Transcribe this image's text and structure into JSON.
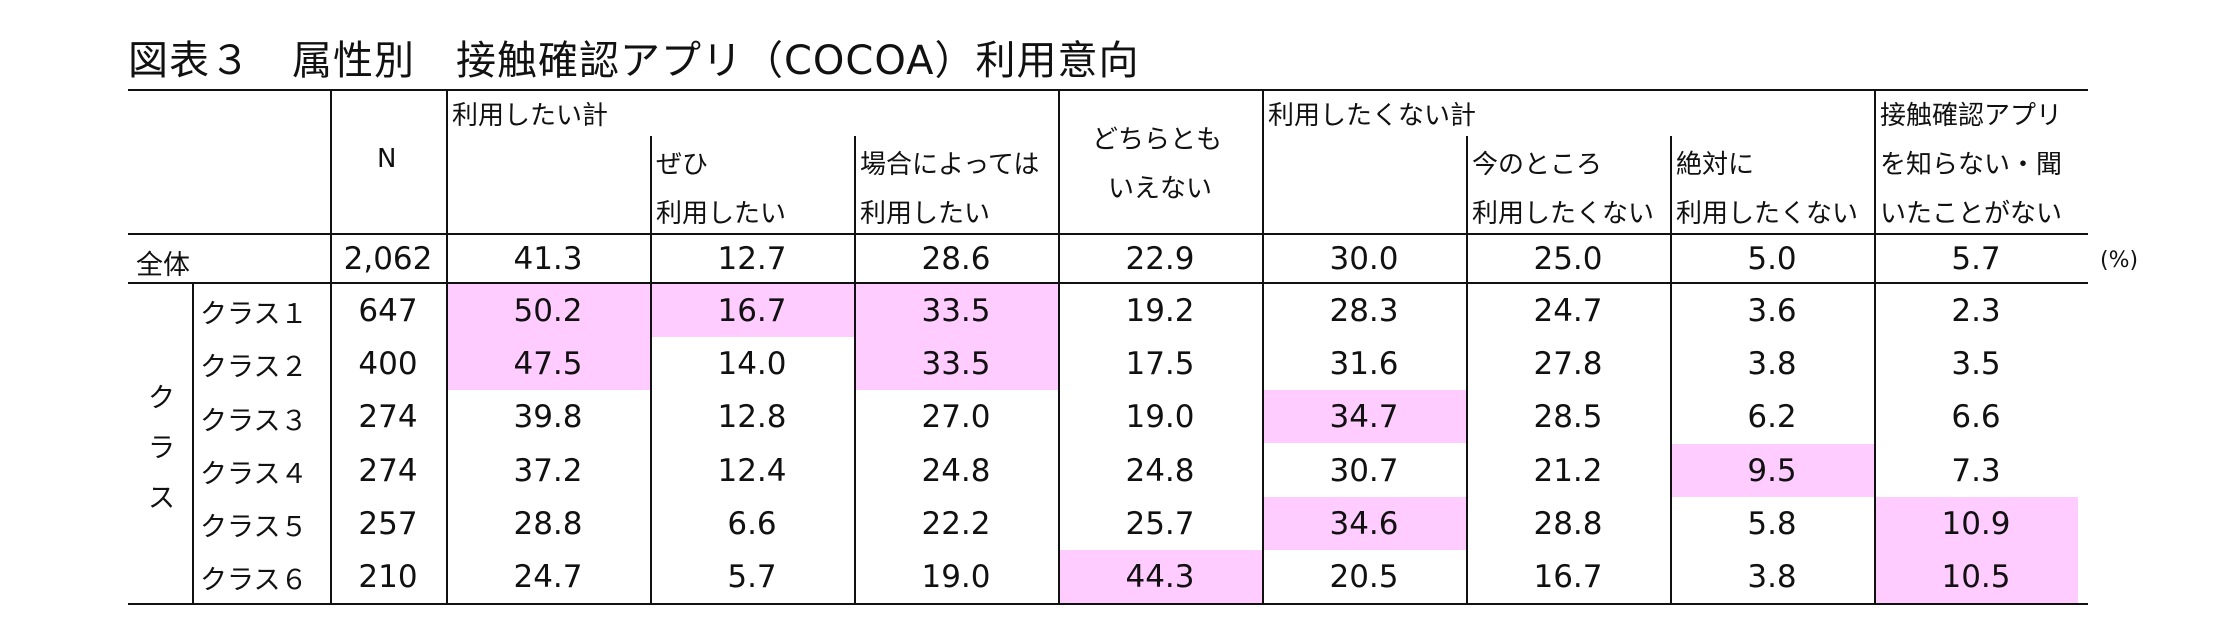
{
  "title": "図表３　属性別　接触確認アプリ（COCOA）利用意向",
  "unit": "(%)",
  "highlight_color": "#ffccff",
  "headers": {
    "n": "N",
    "use_total": "利用したい計",
    "definitely_1": "ぜひ",
    "definitely_2": "利用したい",
    "depends_1": "場合によっては",
    "depends_2": "利用したい",
    "neither_1": "どちらとも",
    "neither_2": "いえない",
    "not_use_total": "利用したくない計",
    "for_now_1": "今のところ",
    "for_now_2": "利用したくない",
    "absolutely_1": "絶対に",
    "absolutely_2": "利用したくない",
    "unknown_1": "接触確認アプリ",
    "unknown_2": "を知らない・聞",
    "unknown_3": "いたことがない"
  },
  "group_label_chars": [
    "ク",
    "ラ",
    "ス"
  ],
  "total_row": {
    "label": "全体",
    "values": [
      "2,062",
      "41.3",
      "12.7",
      "28.6",
      "22.9",
      "30.0",
      "25.0",
      "5.0",
      "5.7"
    ],
    "highlight": [
      false,
      false,
      false,
      false,
      false,
      false,
      false,
      false,
      false
    ]
  },
  "rows": [
    {
      "label": "クラス１",
      "values": [
        "647",
        "50.2",
        "16.7",
        "33.5",
        "19.2",
        "28.3",
        "24.7",
        "3.6",
        "2.3"
      ],
      "highlight": [
        false,
        true,
        true,
        true,
        false,
        false,
        false,
        false,
        false
      ]
    },
    {
      "label": "クラス２",
      "values": [
        "400",
        "47.5",
        "14.0",
        "33.5",
        "17.5",
        "31.6",
        "27.8",
        "3.8",
        "3.5"
      ],
      "highlight": [
        false,
        true,
        false,
        true,
        false,
        false,
        false,
        false,
        false
      ]
    },
    {
      "label": "クラス３",
      "values": [
        "274",
        "39.8",
        "12.8",
        "27.0",
        "19.0",
        "34.7",
        "28.5",
        "6.2",
        "6.6"
      ],
      "highlight": [
        false,
        false,
        false,
        false,
        false,
        true,
        false,
        false,
        false
      ]
    },
    {
      "label": "クラス４",
      "values": [
        "274",
        "37.2",
        "12.4",
        "24.8",
        "24.8",
        "30.7",
        "21.2",
        "9.5",
        "7.3"
      ],
      "highlight": [
        false,
        false,
        false,
        false,
        false,
        false,
        false,
        true,
        false
      ]
    },
    {
      "label": "クラス５",
      "values": [
        "257",
        "28.8",
        "6.6",
        "22.2",
        "25.7",
        "34.6",
        "28.8",
        "5.8",
        "10.9"
      ],
      "highlight": [
        false,
        false,
        false,
        false,
        false,
        true,
        false,
        false,
        true
      ]
    },
    {
      "label": "クラス６",
      "values": [
        "210",
        "24.7",
        "5.7",
        "19.0",
        "44.3",
        "20.5",
        "16.7",
        "3.8",
        "10.5"
      ],
      "highlight": [
        false,
        false,
        false,
        false,
        true,
        false,
        false,
        false,
        true
      ]
    }
  ]
}
